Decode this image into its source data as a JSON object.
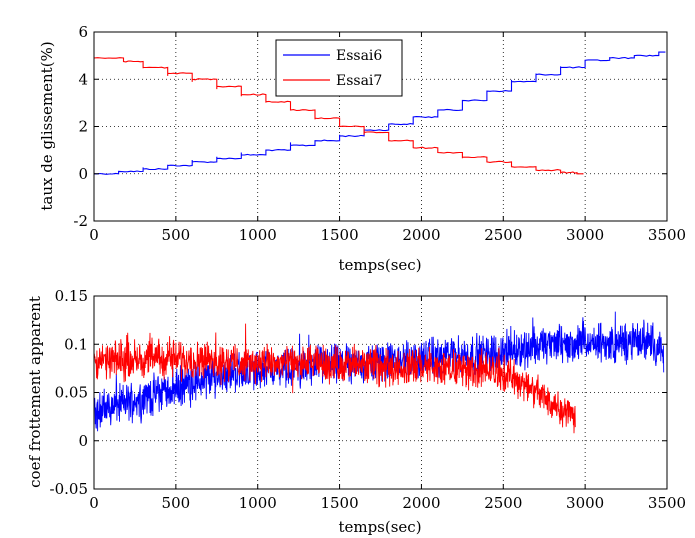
{
  "colors": {
    "essai6": "#0000ff",
    "essai7": "#ff0000",
    "axes": "#000000",
    "grid": "#000000"
  },
  "chart_data": [
    {
      "type": "line",
      "xlabel": "temps(sec)",
      "ylabel": "taux de glissement(%)",
      "xlim": [
        0,
        3500
      ],
      "ylim": [
        -2,
        6
      ],
      "xticks": [
        0,
        500,
        1000,
        1500,
        2000,
        2500,
        3000,
        3500
      ],
      "yticks": [
        -2,
        0,
        2,
        4,
        6
      ],
      "xtick_labels": [
        "0",
        "500",
        "1000",
        "1500",
        "2000",
        "2500",
        "3000",
        "3500"
      ],
      "ytick_labels": [
        "-2",
        "0",
        "2",
        "4",
        "6"
      ],
      "grid": true,
      "grid_style": "dotted",
      "legend_position": "top-center",
      "series": [
        {
          "name": "Essai6",
          "color": "#0000ff",
          "style": "staircase",
          "x": [
            0,
            150,
            300,
            450,
            600,
            750,
            900,
            1050,
            1200,
            1350,
            1500,
            1650,
            1800,
            1950,
            2100,
            2250,
            2400,
            2550,
            2700,
            2850,
            3000,
            3150,
            3300,
            3450
          ],
          "y": [
            0.0,
            0.1,
            0.2,
            0.35,
            0.5,
            0.65,
            0.8,
            1.0,
            1.2,
            1.4,
            1.6,
            1.85,
            2.1,
            2.4,
            2.7,
            3.1,
            3.5,
            3.9,
            4.2,
            4.5,
            4.8,
            4.9,
            5.0,
            5.15
          ]
        },
        {
          "name": "Essai7",
          "color": "#ff0000",
          "style": "staircase",
          "x": [
            0,
            180,
            300,
            450,
            600,
            750,
            900,
            1050,
            1200,
            1350,
            1500,
            1650,
            1800,
            1950,
            2100,
            2250,
            2400,
            2550,
            2700,
            2850,
            2950
          ],
          "y": [
            4.9,
            4.75,
            4.5,
            4.25,
            4.0,
            3.7,
            3.35,
            3.05,
            2.7,
            2.35,
            2.0,
            1.75,
            1.4,
            1.1,
            0.9,
            0.7,
            0.5,
            0.3,
            0.15,
            0.05,
            0.0
          ]
        }
      ]
    },
    {
      "type": "line",
      "xlabel": "temps(sec)",
      "ylabel": "coef frottement apparent",
      "xlim": [
        0,
        3500
      ],
      "ylim": [
        -0.05,
        0.15
      ],
      "xticks": [
        0,
        500,
        1000,
        1500,
        2000,
        2500,
        3000,
        3500
      ],
      "yticks": [
        -0.05,
        0,
        0.05,
        0.1,
        0.15
      ],
      "xtick_labels": [
        "0",
        "500",
        "1000",
        "1500",
        "2000",
        "2500",
        "3000",
        "3500"
      ],
      "ytick_labels": [
        "-0.05",
        "0",
        "0.05",
        "0.1",
        "0.15"
      ],
      "grid": true,
      "grid_style": "dotted",
      "series": [
        {
          "name": "Essai6",
          "color": "#0000ff",
          "style": "noisy",
          "noise": 0.015,
          "x": [
            0,
            100,
            200,
            300,
            400,
            500,
            600,
            700,
            800,
            900,
            1000,
            1200,
            1400,
            1600,
            1800,
            2000,
            2200,
            2400,
            2600,
            2800,
            3000,
            3200,
            3400,
            3480
          ],
          "y": [
            0.03,
            0.035,
            0.04,
            0.045,
            0.05,
            0.055,
            0.06,
            0.065,
            0.07,
            0.072,
            0.073,
            0.075,
            0.078,
            0.08,
            0.082,
            0.085,
            0.088,
            0.09,
            0.095,
            0.1,
            0.1,
            0.1,
            0.105,
            0.09
          ]
        },
        {
          "name": "Essai7",
          "color": "#ff0000",
          "style": "noisy",
          "noise": 0.014,
          "x": [
            0,
            200,
            400,
            600,
            800,
            1000,
            1200,
            1400,
            1600,
            1800,
            2000,
            2200,
            2400,
            2500,
            2600,
            2700,
            2800,
            2900,
            2940
          ],
          "y": [
            0.08,
            0.085,
            0.085,
            0.085,
            0.082,
            0.08,
            0.08,
            0.08,
            0.078,
            0.077,
            0.077,
            0.075,
            0.073,
            0.07,
            0.062,
            0.05,
            0.04,
            0.03,
            0.025
          ]
        }
      ]
    }
  ]
}
